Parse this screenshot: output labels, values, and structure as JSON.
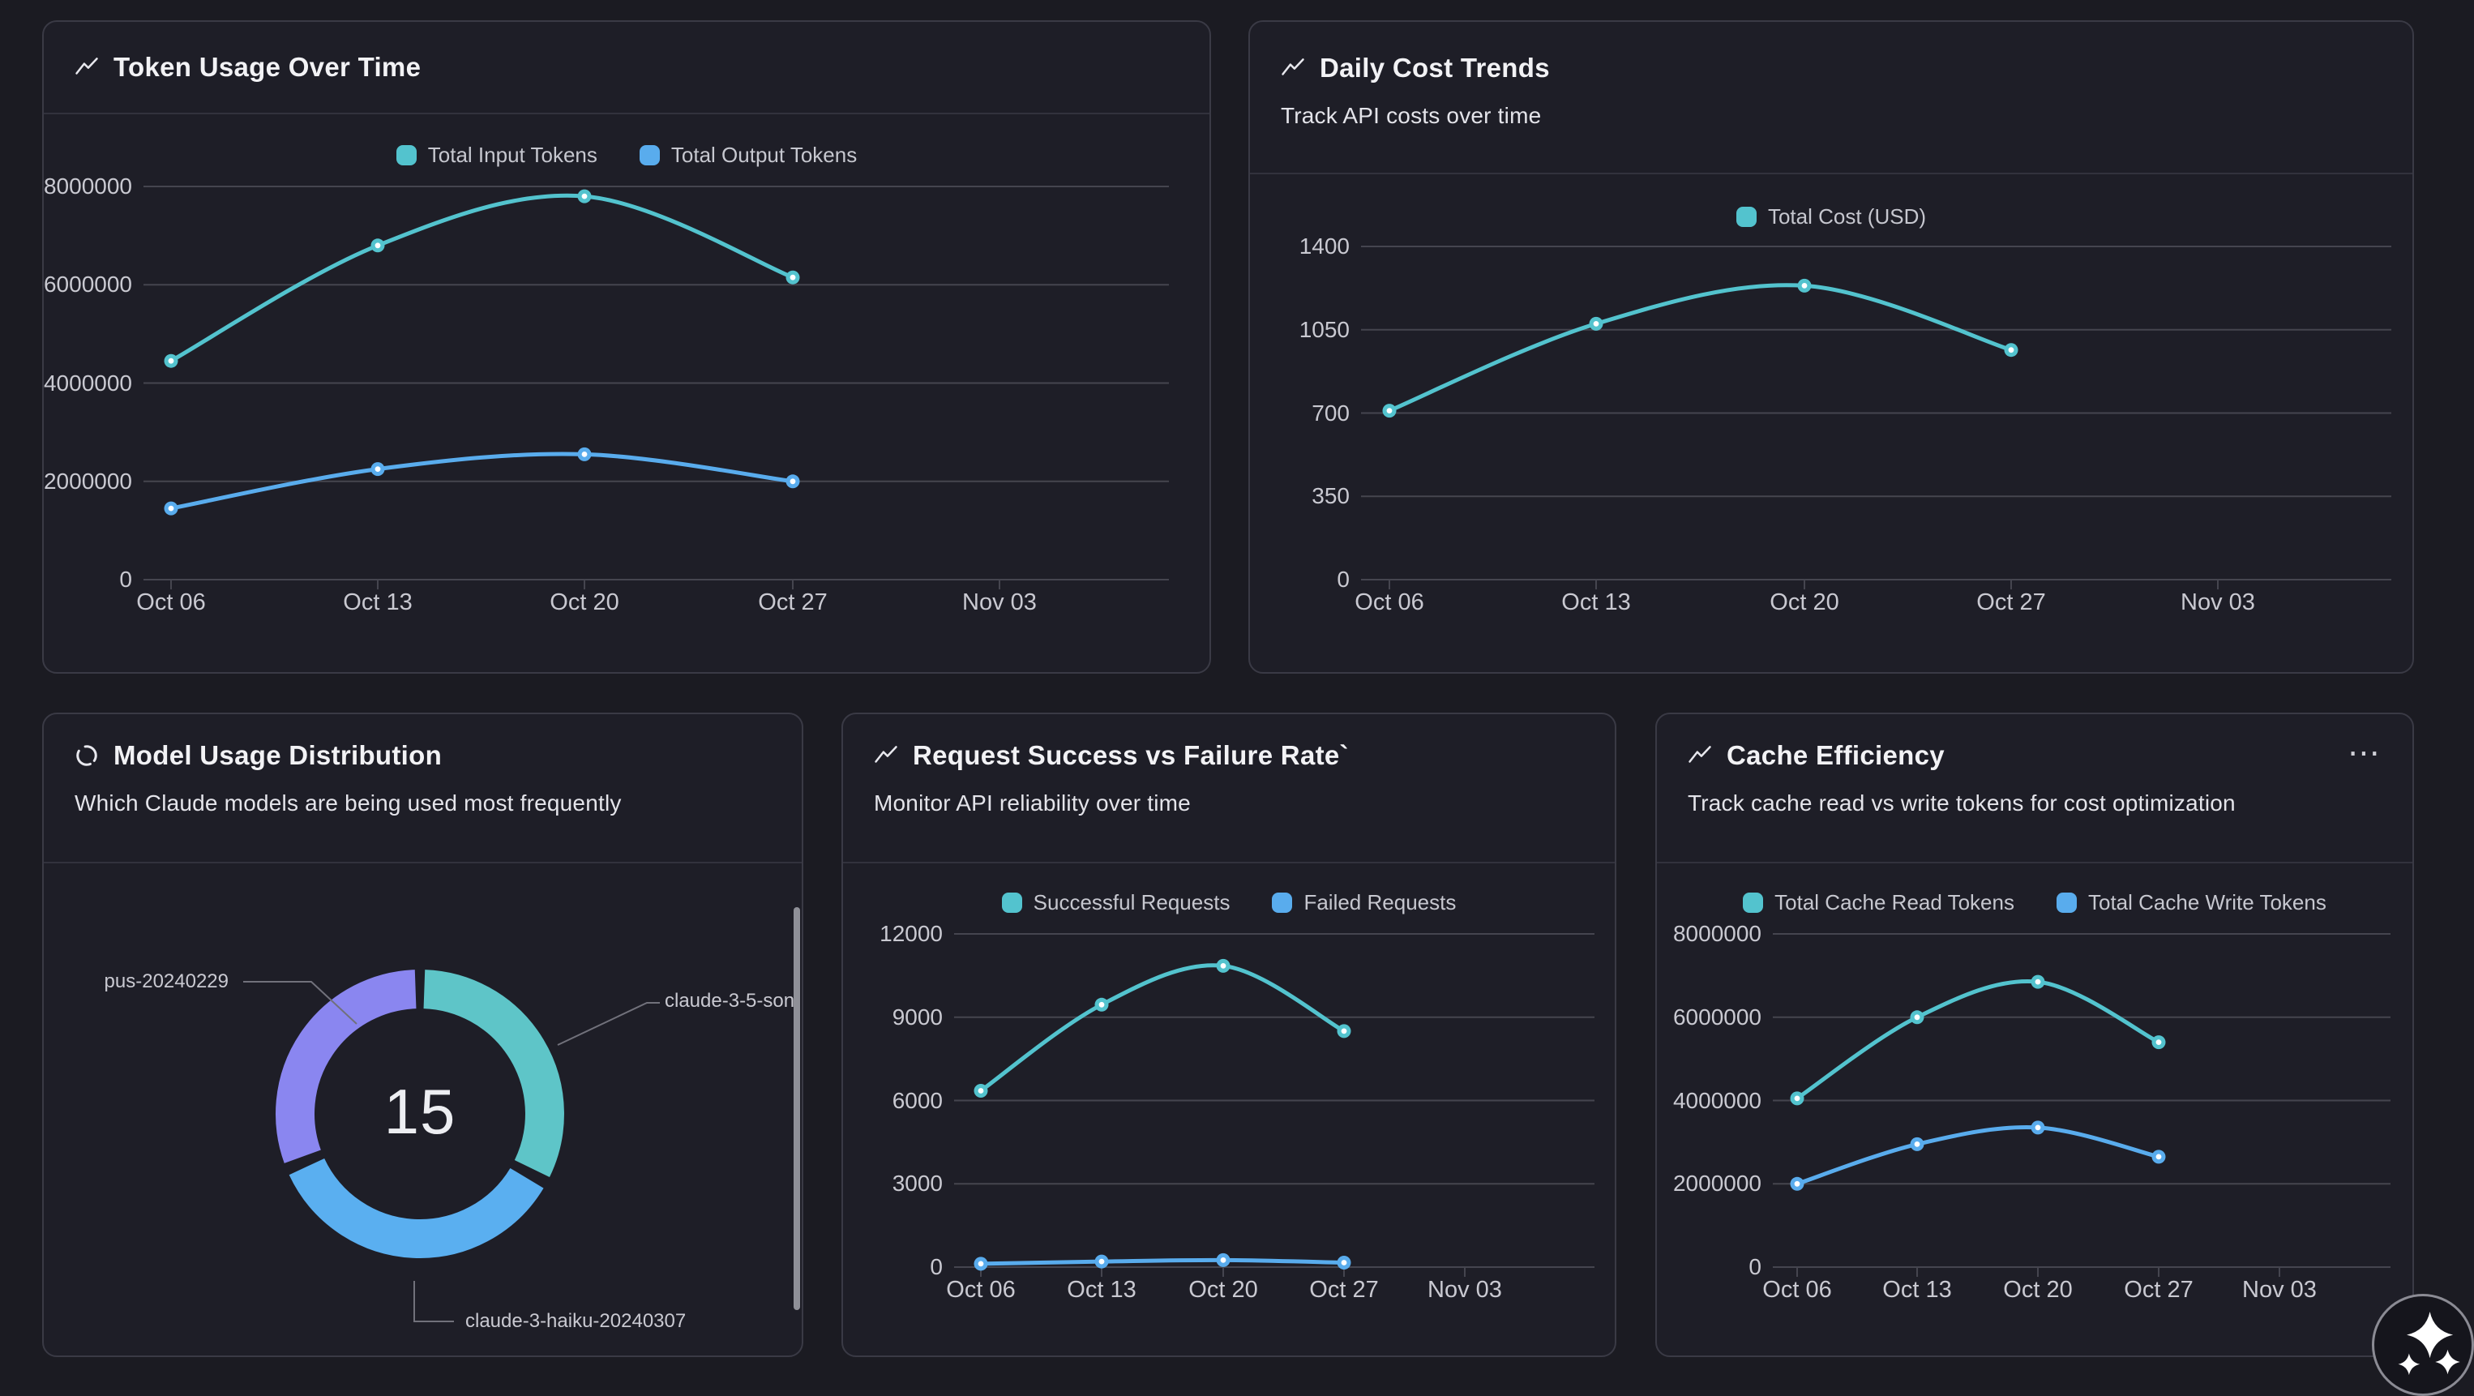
{
  "theme": {
    "page_bg": "#1b1b22",
    "card_bg": "#1e1e27",
    "card_border": "#3a3a45",
    "divider": "#32323d",
    "grid": "#45454f",
    "title_text": "#f2f2f5",
    "subtitle_text": "#e4e4ea",
    "tick_text": "#c9c9d1",
    "legend_text": "#c6c7cf",
    "connector": "#71717b",
    "teal": "#53c3ce",
    "blue": "#59aced",
    "purple": "#8a86f0"
  },
  "cards": {
    "token_usage": {
      "title": "Token Usage Over Time"
    },
    "daily_cost": {
      "title": "Daily Cost Trends",
      "subtitle": "Track API costs over time"
    },
    "model_usage": {
      "title": "Model Usage Distribution",
      "subtitle": "Which Claude models are being used most frequently"
    },
    "requests": {
      "title": "Request Success vs Failure Rate`",
      "subtitle": "Monitor API reliability over time"
    },
    "cache": {
      "title": "Cache Efficiency",
      "subtitle": "Track cache read vs write tokens for cost optimization",
      "menu_icon": "⋯"
    }
  },
  "chart_data": [
    {
      "id": "token_usage",
      "type": "line",
      "title": "Token Usage Over Time",
      "x": [
        "Oct 06",
        "Oct 13",
        "Oct 20",
        "Oct 27",
        "Nov 03"
      ],
      "ylim": [
        0,
        8000000
      ],
      "y_ticks": [
        "0",
        "2000000",
        "4000000",
        "6000000",
        "8000000"
      ],
      "grid": true,
      "legend_position": "top",
      "series": [
        {
          "name": "Total Input Tokens",
          "color": "#53c3ce",
          "values": [
            4450000,
            6800000,
            7800000,
            6150000
          ]
        },
        {
          "name": "Total Output Tokens",
          "color": "#59aced",
          "values": [
            1450000,
            2250000,
            2550000,
            2000000
          ]
        }
      ]
    },
    {
      "id": "daily_cost",
      "type": "line",
      "title": "Daily Cost Trends",
      "x": [
        "Oct 06",
        "Oct 13",
        "Oct 20",
        "Oct 27",
        "Nov 03"
      ],
      "ylim": [
        0,
        1400
      ],
      "y_ticks": [
        "0",
        "350",
        "700",
        "1050",
        "1400"
      ],
      "grid": true,
      "legend_position": "top",
      "series": [
        {
          "name": "Total Cost (USD)",
          "color": "#53c3ce",
          "values": [
            710,
            1075,
            1235,
            965
          ]
        }
      ]
    },
    {
      "id": "model_usage",
      "type": "pie",
      "title": "Model Usage Distribution",
      "center_label": "15",
      "slices": [
        {
          "label": "claude-3-5-son",
          "color": "#5ec5c8",
          "start_deg": 2,
          "end_deg": 116
        },
        {
          "label": "claude-3-haiku-20240307",
          "color": "#5aaff0",
          "start_deg": 121,
          "end_deg": 245
        },
        {
          "label": "pus-20240229",
          "color": "#8a86f0",
          "start_deg": 250,
          "end_deg": 358
        }
      ]
    },
    {
      "id": "requests",
      "type": "line",
      "title": "Request Success vs Failure Rate`",
      "x": [
        "Oct 06",
        "Oct 13",
        "Oct 20",
        "Oct 27",
        "Nov 03"
      ],
      "ylim": [
        0,
        12000
      ],
      "y_ticks": [
        "0",
        "3000",
        "6000",
        "9000",
        "12000"
      ],
      "grid": true,
      "legend_position": "top",
      "series": [
        {
          "name": "Successful Requests",
          "color": "#53c3ce",
          "values": [
            6350,
            9450,
            10850,
            8500
          ]
        },
        {
          "name": "Failed Requests",
          "color": "#59aced",
          "values": [
            120,
            200,
            250,
            160
          ]
        }
      ]
    },
    {
      "id": "cache",
      "type": "line",
      "title": "Cache Efficiency",
      "x": [
        "Oct 06",
        "Oct 13",
        "Oct 20",
        "Oct 27",
        "Nov 03"
      ],
      "ylim": [
        0,
        8000000
      ],
      "y_ticks": [
        "0",
        "2000000",
        "4000000",
        "6000000",
        "8000000"
      ],
      "grid": true,
      "legend_position": "top",
      "series": [
        {
          "name": "Total Cache Read Tokens",
          "color": "#53c3ce",
          "values": [
            4050000,
            6000000,
            6850000,
            5400000
          ]
        },
        {
          "name": "Total Cache Write Tokens",
          "color": "#59aced",
          "values": [
            2000000,
            2950000,
            3350000,
            2650000
          ]
        }
      ]
    }
  ]
}
